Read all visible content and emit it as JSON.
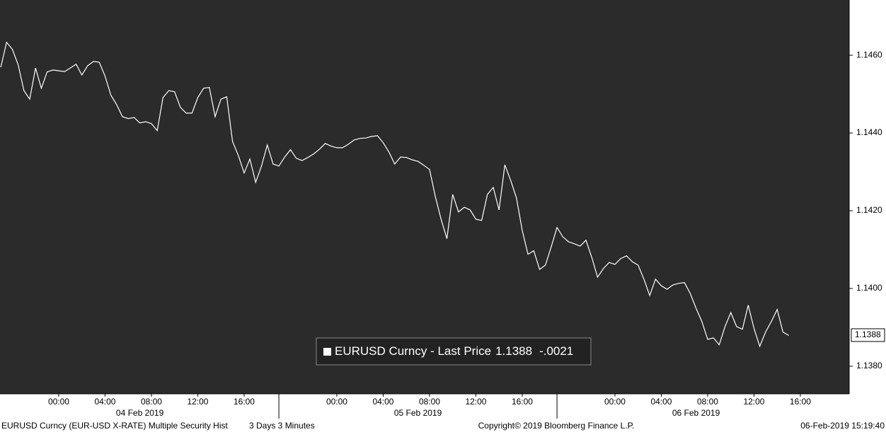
{
  "chart_data": {
    "type": "line",
    "x": [
      "2019-02-03T19:00",
      "2019-02-03T19:30",
      "2019-02-03T20:00",
      "2019-02-03T20:30",
      "2019-02-03T21:00",
      "2019-02-03T21:30",
      "2019-02-03T22:00",
      "2019-02-03T22:30",
      "2019-02-03T23:00",
      "2019-02-03T23:30",
      "2019-02-04T00:00",
      "2019-02-04T00:30",
      "2019-02-04T01:00",
      "2019-02-04T01:30",
      "2019-02-04T02:00",
      "2019-02-04T02:30",
      "2019-02-04T03:00",
      "2019-02-04T03:30",
      "2019-02-04T04:00",
      "2019-02-04T04:30",
      "2019-02-04T05:00",
      "2019-02-04T05:30",
      "2019-02-04T06:00",
      "2019-02-04T06:30",
      "2019-02-04T07:00",
      "2019-02-04T07:30",
      "2019-02-04T08:00",
      "2019-02-04T08:30",
      "2019-02-04T09:00",
      "2019-02-04T09:30",
      "2019-02-04T10:00",
      "2019-02-04T10:30",
      "2019-02-04T11:00",
      "2019-02-04T11:30",
      "2019-02-04T12:00",
      "2019-02-04T12:30",
      "2019-02-04T13:00",
      "2019-02-04T13:30",
      "2019-02-04T14:00",
      "2019-02-04T14:30",
      "2019-02-04T15:00",
      "2019-02-04T15:30",
      "2019-02-04T16:00",
      "2019-02-04T16:30",
      "2019-02-04T17:00",
      "2019-02-04T17:30",
      "2019-02-04T18:00",
      "2019-02-04T18:30",
      "2019-02-04T19:00",
      "2019-02-04T19:30",
      "2019-02-04T20:00",
      "2019-02-04T20:30",
      "2019-02-04T21:00",
      "2019-02-04T21:30",
      "2019-02-04T22:00",
      "2019-02-04T22:30",
      "2019-02-04T23:00",
      "2019-02-04T23:30",
      "2019-02-05T00:00",
      "2019-02-05T00:30",
      "2019-02-05T01:00",
      "2019-02-05T01:30",
      "2019-02-05T02:00",
      "2019-02-05T02:30",
      "2019-02-05T03:00",
      "2019-02-05T03:30",
      "2019-02-05T04:00",
      "2019-02-05T04:30",
      "2019-02-05T05:00",
      "2019-02-05T05:30",
      "2019-02-05T06:00",
      "2019-02-05T06:30",
      "2019-02-05T07:00",
      "2019-02-05T07:30",
      "2019-02-05T08:00",
      "2019-02-05T08:30",
      "2019-02-05T09:00",
      "2019-02-05T09:30",
      "2019-02-05T10:00",
      "2019-02-05T10:30",
      "2019-02-05T11:00",
      "2019-02-05T11:30",
      "2019-02-05T12:00",
      "2019-02-05T12:30",
      "2019-02-05T13:00",
      "2019-02-05T13:30",
      "2019-02-05T14:00",
      "2019-02-05T14:30",
      "2019-02-05T15:00",
      "2019-02-05T15:30",
      "2019-02-05T16:00",
      "2019-02-05T16:30",
      "2019-02-05T17:00",
      "2019-02-05T17:30",
      "2019-02-05T18:00",
      "2019-02-05T18:30",
      "2019-02-05T19:00",
      "2019-02-05T19:30",
      "2019-02-05T20:00",
      "2019-02-05T20:30",
      "2019-02-05T21:00",
      "2019-02-05T21:30",
      "2019-02-05T22:00",
      "2019-02-05T22:30",
      "2019-02-05T23:00",
      "2019-02-05T23:30",
      "2019-02-06T00:00",
      "2019-02-06T00:30",
      "2019-02-06T01:00",
      "2019-02-06T01:30",
      "2019-02-06T02:00",
      "2019-02-06T02:30",
      "2019-02-06T03:00",
      "2019-02-06T03:30",
      "2019-02-06T04:00",
      "2019-02-06T04:30",
      "2019-02-06T05:00",
      "2019-02-06T05:30",
      "2019-02-06T06:00",
      "2019-02-06T06:30",
      "2019-02-06T07:00",
      "2019-02-06T07:30",
      "2019-02-06T08:00",
      "2019-02-06T08:30",
      "2019-02-06T09:00",
      "2019-02-06T09:30",
      "2019-02-06T10:00",
      "2019-02-06T10:30",
      "2019-02-06T11:00",
      "2019-02-06T11:30",
      "2019-02-06T12:00",
      "2019-02-06T12:30",
      "2019-02-06T13:00",
      "2019-02-06T13:30",
      "2019-02-06T14:00",
      "2019-02-06T14:30",
      "2019-02-06T15:00"
    ],
    "series": [
      {
        "name": "EURUSD Curncy - Last Price",
        "color": "#ffffff",
        "values": [
          1.14569,
          1.14633,
          1.14615,
          1.14575,
          1.14509,
          1.14487,
          1.14567,
          1.14515,
          1.14557,
          1.14562,
          1.1456,
          1.14558,
          1.14567,
          1.14577,
          1.14549,
          1.14573,
          1.14584,
          1.14582,
          1.14546,
          1.14497,
          1.14473,
          1.14442,
          1.14437,
          1.1444,
          1.14426,
          1.14429,
          1.14424,
          1.14406,
          1.14491,
          1.14509,
          1.14506,
          1.14466,
          1.14451,
          1.14451,
          1.14491,
          1.14515,
          1.14517,
          1.14442,
          1.14487,
          1.14493,
          1.14378,
          1.14342,
          1.14297,
          1.14333,
          1.14273,
          1.14315,
          1.14369,
          1.1432,
          1.14315,
          1.14338,
          1.14357,
          1.14335,
          1.14329,
          1.14337,
          1.14346,
          1.14358,
          1.14373,
          1.14366,
          1.14362,
          1.14362,
          1.14371,
          1.14382,
          1.14386,
          1.14387,
          1.14391,
          1.14393,
          1.14375,
          1.14351,
          1.1432,
          1.14338,
          1.14337,
          1.14331,
          1.14327,
          1.14317,
          1.14306,
          1.14237,
          1.14178,
          1.14128,
          1.14242,
          1.14197,
          1.14209,
          1.14202,
          1.14178,
          1.14175,
          1.14242,
          1.1426,
          1.14202,
          1.14318,
          1.14278,
          1.14233,
          1.14149,
          1.14088,
          1.14097,
          1.14049,
          1.1406,
          1.14107,
          1.14157,
          1.14133,
          1.1412,
          1.14115,
          1.14109,
          1.14124,
          1.1408,
          1.14029,
          1.14051,
          1.14067,
          1.14062,
          1.14077,
          1.14084,
          1.14069,
          1.1406,
          1.14024,
          1.13982,
          1.14024,
          1.14007,
          1.13998,
          1.14009,
          1.14013,
          1.14015,
          1.13987,
          1.13949,
          1.13915,
          1.13869,
          1.13873,
          1.13855,
          1.13902,
          1.13938,
          1.13902,
          1.13895,
          1.13957,
          1.13897,
          1.13851,
          1.13888,
          1.13915,
          1.13946,
          1.13888,
          1.13879
        ],
        "last_price": 1.1388,
        "change": {
          "value": -0.0021,
          "label": "-.0021"
        }
      }
    ],
    "xlim": [
      "2019-02-03T18:56",
      "2019-02-06T20:13"
    ],
    "xticks": [
      {
        "value": "2019-02-04T00:00",
        "label": "00:00"
      },
      {
        "value": "2019-02-04T04:00",
        "label": "04:00"
      },
      {
        "value": "2019-02-04T08:00",
        "label": "08:00"
      },
      {
        "value": "2019-02-04T12:00",
        "label": "12:00"
      },
      {
        "value": "2019-02-04T16:00",
        "label": "16:00"
      },
      {
        "value": "2019-02-05T00:00",
        "label": "00:00"
      },
      {
        "value": "2019-02-05T04:00",
        "label": "04:00"
      },
      {
        "value": "2019-02-05T08:00",
        "label": "08:00"
      },
      {
        "value": "2019-02-05T12:00",
        "label": "12:00"
      },
      {
        "value": "2019-02-05T16:00",
        "label": "16:00"
      },
      {
        "value": "2019-02-06T00:00",
        "label": "00:00"
      },
      {
        "value": "2019-02-06T04:00",
        "label": "04:00"
      },
      {
        "value": "2019-02-06T08:00",
        "label": "08:00"
      },
      {
        "value": "2019-02-06T12:00",
        "label": "12:00"
      },
      {
        "value": "2019-02-06T16:00",
        "label": "16:00"
      }
    ],
    "day_labels": [
      {
        "value": "2019-02-04",
        "label": "04 Feb 2019"
      },
      {
        "value": "2019-02-05",
        "label": "05 Feb 2019"
      },
      {
        "value": "2019-02-06",
        "label": "06 Feb 2019"
      }
    ],
    "ylim": [
      1.13729,
      1.14742
    ],
    "yticks": [
      {
        "value": 1.138,
        "label": "1.1380"
      },
      {
        "value": 1.14,
        "label": "1.1400"
      },
      {
        "value": 1.142,
        "label": "1.1420"
      },
      {
        "value": 1.144,
        "label": "1.1440"
      },
      {
        "value": 1.146,
        "label": "1.1460"
      }
    ],
    "footer": {
      "security": "EURUSD Curncy (EUR-USD X-RATE) Multiple Security Hist",
      "period": "3 Days 3 Minutes",
      "copyright": "Copyright© 2019 Bloomberg Finance L.P.",
      "timestamp": "06-Feb-2019 15:19:40"
    }
  }
}
